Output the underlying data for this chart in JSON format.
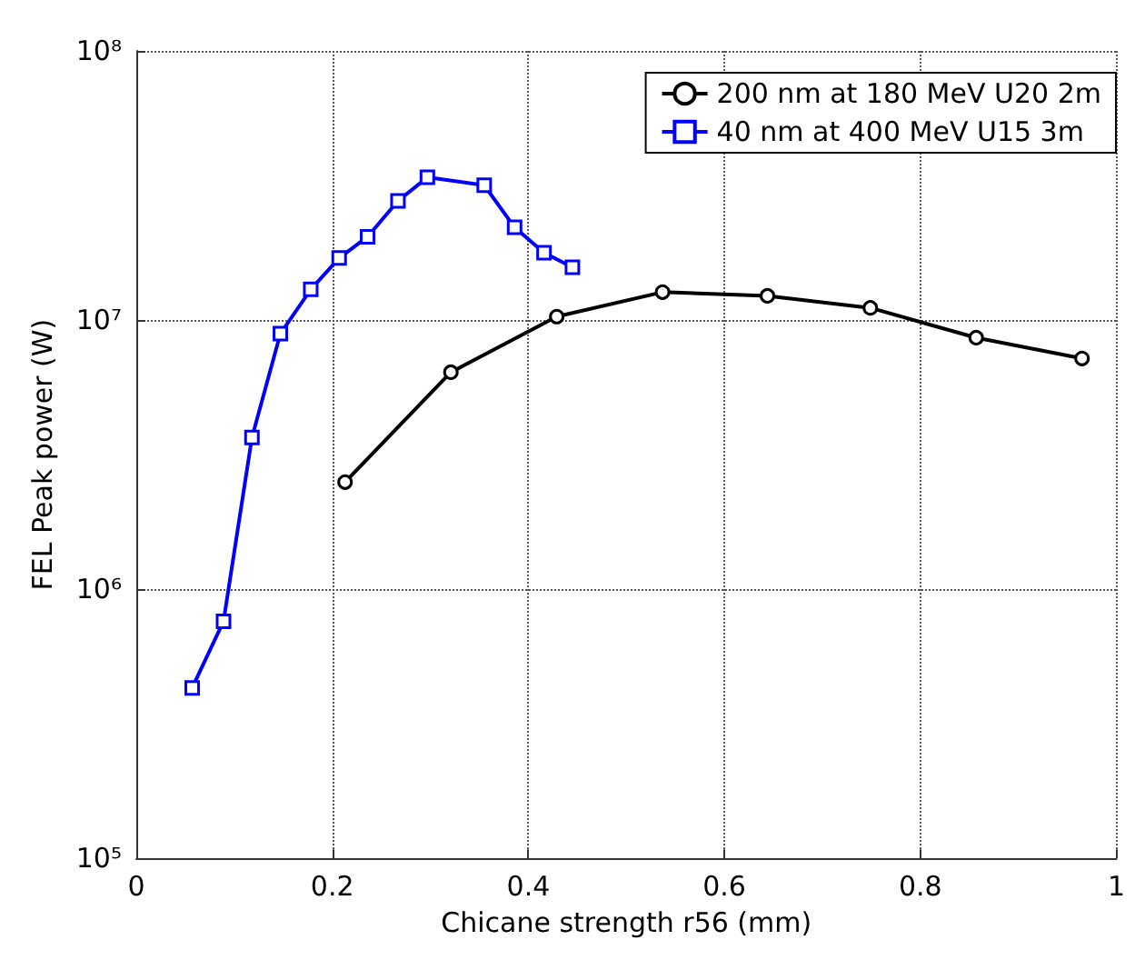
{
  "chart_data": {
    "type": "line",
    "xlabel": "Chicane strength r56 (mm)",
    "ylabel": "FEL Peak power (W)",
    "xlim": [
      0,
      1
    ],
    "xticks": [
      0,
      0.2,
      0.4,
      0.6,
      0.8,
      1
    ],
    "ylim": [
      100000,
      100000000
    ],
    "yticks": [
      {
        "value": 100000,
        "label": "10⁵"
      },
      {
        "value": 1000000,
        "label": "10⁶"
      },
      {
        "value": 10000000,
        "label": "10⁷"
      },
      {
        "value": 100000000,
        "label": "10⁸"
      }
    ],
    "log": "y",
    "grid": true,
    "legend": "top right",
    "line_style": "solid",
    "series": [
      {
        "name": "200 nm at 180 MeV U20 2m",
        "color": "#000000",
        "marker": "circle",
        "x": [
          0.213,
          0.321,
          0.429,
          0.537,
          0.644,
          0.749,
          0.857,
          0.965
        ],
        "values": [
          2500000,
          6400000,
          10300000,
          12700000,
          12300000,
          11100000,
          8600000,
          7200000
        ]
      },
      {
        "name": "40 nm at 400 MeV U15 3m",
        "color": "#0000ff",
        "marker": "square",
        "x": [
          0.057,
          0.089,
          0.118,
          0.147,
          0.178,
          0.207,
          0.236,
          0.267,
          0.297,
          0.355,
          0.386,
          0.416,
          0.445
        ],
        "values": [
          430000,
          760000,
          3660000,
          8900000,
          13000000,
          17000000,
          20400000,
          27700000,
          33900000,
          31700000,
          22100000,
          17800000,
          15700000
        ]
      }
    ]
  }
}
